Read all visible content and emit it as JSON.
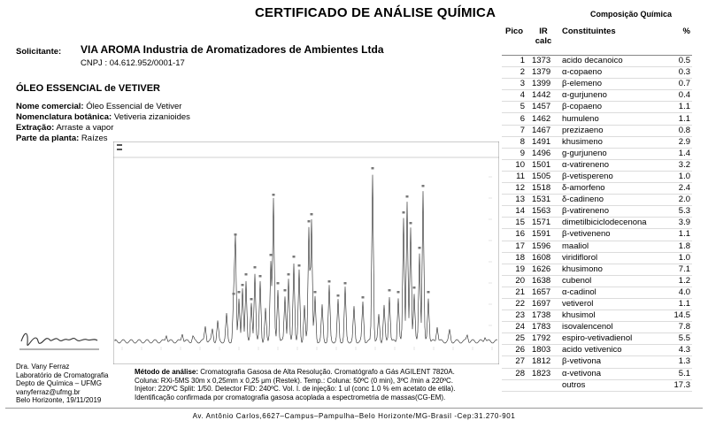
{
  "header": {
    "title": "CERTIFICADO DE ANÁLISE QUÍMICA",
    "composition_title": "Composição Química"
  },
  "solicitante": {
    "label": "Solicitante:",
    "name": "VIA AROMA  Industria de Aromatizadores de Ambientes   Ltda",
    "cnpj": "CNPJ : 04.612.952/0001-17"
  },
  "product": {
    "title": "ÓLEO ESSENCIAL  de VETIVER",
    "fields": [
      {
        "label": "Nome comercial:",
        "value": "Óleo Essencial de Vetiver"
      },
      {
        "label": "Nomenclatura botânica:",
        "value": "Vetiveria zizanioides"
      },
      {
        "label": "Extração:",
        "value": "Arraste a vapor"
      },
      {
        "label": "Parte da planta:",
        "value": "Raízes"
      }
    ]
  },
  "table": {
    "headers": {
      "pico": "Pico",
      "ir": "IR",
      "ir2": "calc",
      "name": "Constituintes",
      "pct": "%"
    },
    "rows": [
      {
        "pico": "1",
        "ir": "1373",
        "name": "acido decanoico",
        "pct": "0.5"
      },
      {
        "pico": "2",
        "ir": "1379",
        "name": "α-copaeno",
        "pct": "0.3"
      },
      {
        "pico": "3",
        "ir": "1399",
        "name": "β-elemeno",
        "pct": "0.7"
      },
      {
        "pico": "4",
        "ir": "1442",
        "name": "α-gurjuneno",
        "pct": "0.4"
      },
      {
        "pico": "5",
        "ir": "1457",
        "name": "β-copaeno",
        "pct": "1.1"
      },
      {
        "pico": "6",
        "ir": "1462",
        "name": "humuleno",
        "pct": "1.1"
      },
      {
        "pico": "7",
        "ir": "1467",
        "name": "prezizaeno",
        "pct": "0.8"
      },
      {
        "pico": "8",
        "ir": "1491",
        "name": "khusimeno",
        "pct": "2.9"
      },
      {
        "pico": "9",
        "ir": "1496",
        "name": "g-gurjuneno",
        "pct": "1.4"
      },
      {
        "pico": "10",
        "ir": "1501",
        "name": "α-vatireneno",
        "pct": "3.2"
      },
      {
        "pico": "11",
        "ir": "1505",
        "name": "β-vetispereno",
        "pct": "1.0"
      },
      {
        "pico": "12",
        "ir": "1518",
        "name": "δ-amorfeno",
        "pct": "2.4"
      },
      {
        "pico": "13",
        "ir": "1531",
        "name": "δ-cadineno",
        "pct": "2.0"
      },
      {
        "pico": "14",
        "ir": "1563",
        "name": "β-vatireneno",
        "pct": "5.3"
      },
      {
        "pico": "15",
        "ir": "1571",
        "name": "dimetilbiciclodecenona",
        "pct": "3.9"
      },
      {
        "pico": "16",
        "ir": "1591",
        "name": "β-veti­veneno",
        "pct": "1.1"
      },
      {
        "pico": "17",
        "ir": "1596",
        "name": "maaliol",
        "pct": "1.8"
      },
      {
        "pico": "18",
        "ir": "1608",
        "name": "viridiflorol",
        "pct": "1.0"
      },
      {
        "pico": "19",
        "ir": "1626",
        "name": "khusimono",
        "pct": "7.1"
      },
      {
        "pico": "20",
        "ir": "1638",
        "name": "cubenol",
        "pct": "1.2"
      },
      {
        "pico": "21",
        "ir": "1657",
        "name": "α-cadinol",
        "pct": "4.0"
      },
      {
        "pico": "22",
        "ir": "1697",
        "name": "vetiverol",
        "pct": "1.1"
      },
      {
        "pico": "23",
        "ir": "1738",
        "name": "khusimol",
        "pct": "14.5"
      },
      {
        "pico": "24",
        "ir": "1783",
        "name": "isovalencenol",
        "pct": "7.8"
      },
      {
        "pico": "25",
        "ir": "1792",
        "name": "espiro-vetivadienol",
        "pct": "5.5"
      },
      {
        "pico": "26",
        "ir": "1803",
        "name": "acido vetivenico",
        "pct": "4.3"
      },
      {
        "pico": "27",
        "ir": "1812",
        "name": "β-vetivona",
        "pct": "1.3"
      },
      {
        "pico": "28",
        "ir": "1823",
        "name": "α-vetivona",
        "pct": "5.1"
      },
      {
        "pico": "",
        "ir": "",
        "name": "outros",
        "pct": "17.3"
      }
    ]
  },
  "lab": {
    "lines": [
      "Dra. Vany Ferraz",
      "Laboratório de Cromatografia",
      "Depto de Química – UFMG",
      "vanyferraz@ufmg.br",
      "Belo Horizonte, 19/11/2019"
    ]
  },
  "method": {
    "label": "Método de análise:",
    "line1": " Cromatografia Gasosa de Alta Resolução. Cromatógrafo a Gás AGILENT 7820A.",
    "line2": "Coluna: RXi-5MS 30m x 0,25mm x 0,25 μm (Restek).  Temp.: Coluna: 50ºC (0 min), 3ºC /min a  220ºC.",
    "line3": "Injetor: 220ºC Split: 1/50. Detector FID: 240ºC. Vol. I. de  injeção: 1 ul  (conc 1.0 % em acetato de etila).",
    "line4": "Identificação confirmada por cromatografia gasosa acoplada a espectrometria de massas(CG-EM)."
  },
  "footer": {
    "address": "Av. Antônio Carlos,6627–Campus–Pampulha–Belo Horizonte/MG-Brasil -Cep:31.270-901"
  },
  "colors": {
    "trace": "#222222",
    "axis": "#444444"
  }
}
